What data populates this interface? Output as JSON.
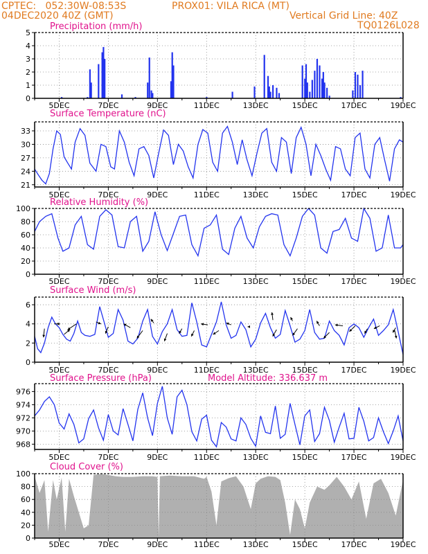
{
  "header": {
    "left_line1": "CPTEC:   052:30W-08:53S",
    "center_line1": "PROX01: VILA RICA (MT)",
    "left_line2": "04DEC2020 40Z (GMT)",
    "right_line2": "Vertical Grid Line: 40Z",
    "right_line3": "TQ0126L028"
  },
  "x_axis": {
    "tick_labels": [
      "5DEC",
      "7DEC",
      "9DEC",
      "11DEC",
      "13DEC",
      "15DEC",
      "17DEC",
      "19DEC"
    ],
    "tick_days": [
      1,
      3,
      5,
      7,
      9,
      11,
      13,
      15
    ],
    "day_range": [
      0,
      15
    ]
  },
  "colors": {
    "series": "#2233ee",
    "title": "#e0128c",
    "header": "#e07a1f",
    "cloud": "#b0b0b0",
    "grid": "#888888"
  },
  "chart_data": [
    {
      "type": "bar",
      "title": "Precipitation (mm/h)",
      "ylim": [
        0,
        5
      ],
      "yticks": [
        0,
        1,
        2,
        3,
        4,
        5
      ],
      "x": [
        1.1,
        2.15,
        2.25,
        2.3,
        2.6,
        2.75,
        2.8,
        2.85,
        3.55,
        4.1,
        4.6,
        4.67,
        4.75,
        4.8,
        5.55,
        5.6,
        5.65,
        7.0,
        8.05,
        8.95,
        9.35,
        9.5,
        9.55,
        9.6,
        9.7,
        9.85,
        9.95,
        10.9,
        11.0,
        11.05,
        11.1,
        11.2,
        11.3,
        11.4,
        11.5,
        11.6,
        11.7,
        11.75,
        11.8,
        11.9,
        12.0,
        12.95,
        13.05,
        13.15,
        13.25,
        13.35,
        14.9
      ],
      "values": [
        0.1,
        0.1,
        2.2,
        1.2,
        2.6,
        3.5,
        3.9,
        3.0,
        0.3,
        0.1,
        1.2,
        3.1,
        0.6,
        0.4,
        1.3,
        3.5,
        2.5,
        0.1,
        0.5,
        0.9,
        3.3,
        1.7,
        0.9,
        0.5,
        1.0,
        0.8,
        0.4,
        2.5,
        1.5,
        2.6,
        1.2,
        0.5,
        1.4,
        2.1,
        3.0,
        2.5,
        1.5,
        2.0,
        1.2,
        0.8,
        0.2,
        0.6,
        2.0,
        1.8,
        1.0,
        2.1,
        0.1
      ]
    },
    {
      "type": "line",
      "title": "Surface Temperature (nC)",
      "ylim": [
        20.5,
        35
      ],
      "yticks": [
        21,
        24,
        27,
        30,
        33
      ],
      "x": [
        0,
        0.15,
        0.3,
        0.45,
        0.6,
        0.75,
        0.9,
        1.05,
        1.2,
        1.35,
        1.5,
        1.65,
        1.85,
        2.05,
        2.25,
        2.5,
        2.7,
        2.9,
        3.1,
        3.25,
        3.45,
        3.65,
        3.85,
        4.05,
        4.25,
        4.45,
        4.65,
        4.85,
        5.05,
        5.25,
        5.45,
        5.65,
        5.85,
        6.05,
        6.25,
        6.45,
        6.65,
        6.85,
        7.05,
        7.25,
        7.45,
        7.65,
        7.85,
        8.05,
        8.25,
        8.45,
        8.65,
        8.85,
        9.05,
        9.25,
        9.45,
        9.65,
        9.85,
        10.05,
        10.25,
        10.45,
        10.65,
        10.85,
        11.05,
        11.25,
        11.45,
        11.65,
        11.85,
        12.05,
        12.25,
        12.45,
        12.65,
        12.85,
        13.05,
        13.25,
        13.45,
        13.65,
        13.85,
        14.05,
        14.25,
        14.45,
        14.65,
        14.85,
        15.0
      ],
      "values": [
        24.5,
        23.2,
        22.0,
        21.2,
        23.5,
        29.0,
        33.0,
        32.2,
        27.2,
        25.8,
        24.5,
        30.5,
        33.5,
        32.0,
        25.8,
        24.0,
        30.0,
        29.5,
        25.0,
        24.5,
        33.0,
        30.5,
        26.0,
        23.0,
        29.0,
        29.5,
        27.5,
        22.5,
        28.0,
        33.2,
        32.0,
        25.5,
        30.0,
        28.5,
        25.0,
        22.5,
        30.0,
        33.3,
        32.5,
        26.0,
        24.0,
        32.5,
        34.0,
        30.5,
        25.5,
        31.0,
        26.5,
        23.0,
        28.0,
        32.5,
        33.5,
        26.0,
        24.0,
        31.5,
        30.5,
        23.5,
        31.5,
        33.8,
        30.0,
        23.0,
        30.0,
        27.5,
        24.5,
        22.0,
        29.5,
        29.0,
        24.5,
        23.0,
        31.5,
        32.5,
        24.5,
        22.5,
        30.0,
        31.5,
        26.5,
        21.8,
        29.0,
        31.0,
        30.5
      ]
    },
    {
      "type": "line",
      "title": "Relative Humidity (%)",
      "ylim": [
        0,
        100
      ],
      "yticks": [
        0,
        20,
        40,
        60,
        80,
        100
      ],
      "x": [
        0,
        0.2,
        0.45,
        0.7,
        0.95,
        1.15,
        1.4,
        1.65,
        1.9,
        2.15,
        2.4,
        2.65,
        2.9,
        3.15,
        3.4,
        3.65,
        3.9,
        4.15,
        4.4,
        4.65,
        4.9,
        5.15,
        5.4,
        5.65,
        5.9,
        6.15,
        6.4,
        6.65,
        6.9,
        7.15,
        7.4,
        7.65,
        7.9,
        8.15,
        8.4,
        8.65,
        8.9,
        9.15,
        9.4,
        9.65,
        9.9,
        10.15,
        10.4,
        10.65,
        10.9,
        11.15,
        11.4,
        11.65,
        11.9,
        12.15,
        12.4,
        12.65,
        12.9,
        13.15,
        13.4,
        13.65,
        13.9,
        14.15,
        14.4,
        14.65,
        14.9,
        15.0
      ],
      "values": [
        65,
        80,
        88,
        92,
        55,
        35,
        40,
        75,
        88,
        45,
        38,
        88,
        98,
        90,
        42,
        40,
        80,
        88,
        35,
        50,
        95,
        60,
        36,
        62,
        88,
        90,
        45,
        28,
        70,
        75,
        90,
        38,
        30,
        70,
        88,
        55,
        40,
        72,
        88,
        92,
        90,
        45,
        28,
        55,
        88,
        100,
        90,
        40,
        32,
        65,
        68,
        85,
        55,
        50,
        100,
        85,
        35,
        40,
        90,
        40,
        40,
        45
      ]
    },
    {
      "type": "line",
      "title": "Surface Wind (m/s)",
      "ylim": [
        0,
        6.8
      ],
      "yticks": [
        0,
        2,
        4,
        6
      ],
      "x": [
        0,
        0.12,
        0.25,
        0.4,
        0.55,
        0.7,
        0.85,
        1.0,
        1.15,
        1.3,
        1.45,
        1.6,
        1.75,
        1.9,
        2.05,
        2.25,
        2.45,
        2.65,
        2.85,
        3.0,
        3.2,
        3.4,
        3.6,
        3.8,
        4.0,
        4.2,
        4.4,
        4.6,
        4.8,
        5.0,
        5.2,
        5.4,
        5.6,
        5.8,
        6.0,
        6.2,
        6.4,
        6.6,
        6.8,
        7.0,
        7.2,
        7.4,
        7.6,
        7.8,
        8.0,
        8.2,
        8.4,
        8.6,
        8.8,
        9.0,
        9.2,
        9.4,
        9.6,
        9.8,
        10.0,
        10.2,
        10.4,
        10.6,
        10.8,
        11.0,
        11.2,
        11.4,
        11.6,
        11.8,
        12.0,
        12.2,
        12.4,
        12.6,
        12.8,
        13.0,
        13.2,
        13.4,
        13.6,
        13.8,
        14.0,
        14.2,
        14.4,
        14.6,
        14.8,
        15.0
      ],
      "values": [
        2.7,
        1.4,
        1.0,
        2.0,
        3.6,
        4.7,
        4.0,
        3.6,
        2.9,
        2.4,
        2.2,
        3.0,
        4.3,
        3.1,
        2.8,
        2.7,
        2.9,
        5.8,
        4.0,
        2.6,
        3.0,
        5.5,
        4.4,
        2.2,
        1.9,
        2.5,
        4.3,
        5.5,
        2.7,
        1.9,
        3.2,
        4.0,
        5.5,
        3.4,
        2.7,
        2.8,
        6.2,
        4.2,
        1.8,
        1.6,
        2.9,
        4.2,
        6.3,
        3.9,
        2.5,
        2.8,
        4.2,
        3.4,
        1.6,
        2.4,
        4.1,
        5.1,
        3.6,
        2.5,
        2.9,
        5.4,
        3.8,
        2.1,
        2.4,
        3.3,
        5.5,
        3.1,
        2.4,
        2.5,
        4.3,
        3.3,
        2.8,
        1.8,
        3.6,
        4.0,
        3.6,
        2.6,
        3.6,
        4.5,
        2.8,
        3.3,
        3.9,
        5.5,
        3.2,
        0.8
      ],
      "arrows": [
        {
          "x": 0.4,
          "y": 3.5,
          "dx": -0.1,
          "dy": -0.9
        },
        {
          "x": 0.8,
          "y": 4.0,
          "dx": 0.6,
          "dy": 0.0
        },
        {
          "x": 1.2,
          "y": 2.9,
          "dx": 0.6,
          "dy": 0.5
        },
        {
          "x": 1.7,
          "y": 4.0,
          "dx": -0.9,
          "dy": -0.6
        },
        {
          "x": 2.5,
          "y": 4.2,
          "dx": 0.5,
          "dy": -0.2
        },
        {
          "x": 3.0,
          "y": 3.7,
          "dx": -0.3,
          "dy": -0.7
        },
        {
          "x": 3.9,
          "y": 3.6,
          "dx": -0.7,
          "dy": 0.4
        },
        {
          "x": 4.4,
          "y": 3.3,
          "dx": -0.6,
          "dy": -0.8
        },
        {
          "x": 4.85,
          "y": 4.1,
          "dx": -0.3,
          "dy": 0.4
        },
        {
          "x": 5.4,
          "y": 3.0,
          "dx": -0.3,
          "dy": -0.8
        },
        {
          "x": 6.0,
          "y": 3.5,
          "dx": -0.3,
          "dy": -0.5
        },
        {
          "x": 6.5,
          "y": 3.3,
          "dx": -0.3,
          "dy": -0.6
        },
        {
          "x": 7.05,
          "y": 3.9,
          "dx": -0.7,
          "dy": 0.1
        },
        {
          "x": 7.5,
          "y": 3.3,
          "dx": -0.6,
          "dy": -0.4
        },
        {
          "x": 8.0,
          "y": 3.9,
          "dx": -0.5,
          "dy": 0.2
        },
        {
          "x": 8.75,
          "y": 3.7,
          "dx": -0.2,
          "dy": 0.0
        },
        {
          "x": 9.7,
          "y": 4.4,
          "dx": -0.1,
          "dy": 0.8
        },
        {
          "x": 9.85,
          "y": 3.4,
          "dx": -0.4,
          "dy": -0.7
        },
        {
          "x": 10.5,
          "y": 4.3,
          "dx": -0.2,
          "dy": 0.4
        },
        {
          "x": 10.7,
          "y": 3.5,
          "dx": -0.5,
          "dy": -0.7
        },
        {
          "x": 11.6,
          "y": 3.8,
          "dx": -0.3,
          "dy": 0.5
        },
        {
          "x": 12.0,
          "y": 3.1,
          "dx": -0.6,
          "dy": -0.6
        },
        {
          "x": 12.55,
          "y": 3.8,
          "dx": -0.8,
          "dy": 0.1
        },
        {
          "x": 13.05,
          "y": 3.8,
          "dx": -0.6,
          "dy": -0.6
        },
        {
          "x": 13.55,
          "y": 3.5,
          "dx": -0.3,
          "dy": -0.5
        },
        {
          "x": 14.05,
          "y": 3.8,
          "dx": -0.6,
          "dy": -0.3
        },
        {
          "x": 14.65,
          "y": 3.4,
          "dx": 0.2,
          "dy": -0.9
        },
        {
          "x": 14.7,
          "y": 3.6,
          "dx": -0.3,
          "dy": -0.5
        }
      ]
    },
    {
      "type": "line",
      "title": "Surface Pressure (hPa)",
      "annotation": "Model Altitude: 336.637 m",
      "ylim": [
        967.2,
        977.2
      ],
      "yticks": [
        968,
        970,
        972,
        974,
        976
      ],
      "x": [
        0,
        0.2,
        0.4,
        0.6,
        0.8,
        1.0,
        1.2,
        1.4,
        1.6,
        1.8,
        2.0,
        2.2,
        2.4,
        2.6,
        2.8,
        3.0,
        3.2,
        3.4,
        3.6,
        3.8,
        4.0,
        4.2,
        4.4,
        4.6,
        4.8,
        5.0,
        5.2,
        5.4,
        5.6,
        5.8,
        6.0,
        6.2,
        6.4,
        6.6,
        6.8,
        7.0,
        7.2,
        7.4,
        7.6,
        7.8,
        8.0,
        8.2,
        8.4,
        8.6,
        8.8,
        9.0,
        9.2,
        9.4,
        9.6,
        9.8,
        10.0,
        10.2,
        10.4,
        10.6,
        10.8,
        11.0,
        11.2,
        11.4,
        11.6,
        11.8,
        12.0,
        12.2,
        12.4,
        12.6,
        12.8,
        13.0,
        13.2,
        13.4,
        13.6,
        13.8,
        14.0,
        14.2,
        14.4,
        14.6,
        14.8,
        15.0
      ],
      "values": [
        972.3,
        973.2,
        974.5,
        975.2,
        974.0,
        971.2,
        970.3,
        972.6,
        971.0,
        968.2,
        968.8,
        971.9,
        973.2,
        970.5,
        968.6,
        972.5,
        970.0,
        969.4,
        973.4,
        971.0,
        968.5,
        973.3,
        975.8,
        972.0,
        969.3,
        974.2,
        976.8,
        972.0,
        969.5,
        975.2,
        976.2,
        974.0,
        969.9,
        968.5,
        971.8,
        972.4,
        968.6,
        967.6,
        971.3,
        970.6,
        968.8,
        968.5,
        972.0,
        971.0,
        968.9,
        967.7,
        972.3,
        969.8,
        969.6,
        973.8,
        968.9,
        969.5,
        974.2,
        971.0,
        967.9,
        972.3,
        973.2,
        968.4,
        969.6,
        973.6,
        971.6,
        968.3,
        970.6,
        972.7,
        968.8,
        968.9,
        973.6,
        971.5,
        968.5,
        969.0,
        972.0,
        969.9,
        968.1,
        970.0,
        972.3,
        968.5
      ]
    },
    {
      "type": "area",
      "title": "Cloud Cover (%)",
      "ylim": [
        0,
        100
      ],
      "yticks": [
        0,
        20,
        40,
        60,
        80,
        100
      ],
      "x": [
        0,
        0.2,
        0.4,
        0.55,
        0.75,
        0.9,
        1.1,
        1.25,
        1.4,
        1.6,
        1.8,
        2.0,
        2.2,
        2.4,
        2.6,
        2.8,
        3.0,
        3.3,
        3.6,
        4.0,
        4.4,
        4.8,
        5.0,
        5.05,
        5.1,
        5.5,
        6.0,
        6.5,
        6.9,
        7.0,
        7.2,
        7.4,
        7.6,
        7.9,
        8.2,
        8.5,
        8.8,
        9.0,
        9.2,
        9.5,
        9.8,
        10.0,
        10.2,
        10.4,
        10.6,
        10.8,
        11.0,
        11.2,
        11.5,
        11.8,
        12.0,
        12.3,
        12.6,
        12.9,
        13.2,
        13.5,
        13.8,
        14.1,
        14.4,
        14.7,
        15.0
      ],
      "values": [
        96,
        70,
        90,
        10,
        90,
        60,
        94,
        10,
        92,
        65,
        40,
        15,
        20,
        98,
        99,
        99,
        98,
        96,
        95,
        95,
        96,
        96,
        95,
        3,
        96,
        97,
        96,
        96,
        92,
        95,
        72,
        20,
        88,
        93,
        96,
        80,
        45,
        85,
        92,
        96,
        95,
        90,
        55,
        5,
        60,
        45,
        15,
        55,
        80,
        75,
        82,
        95,
        80,
        60,
        88,
        30,
        85,
        92,
        70,
        35,
        90
      ]
    }
  ]
}
